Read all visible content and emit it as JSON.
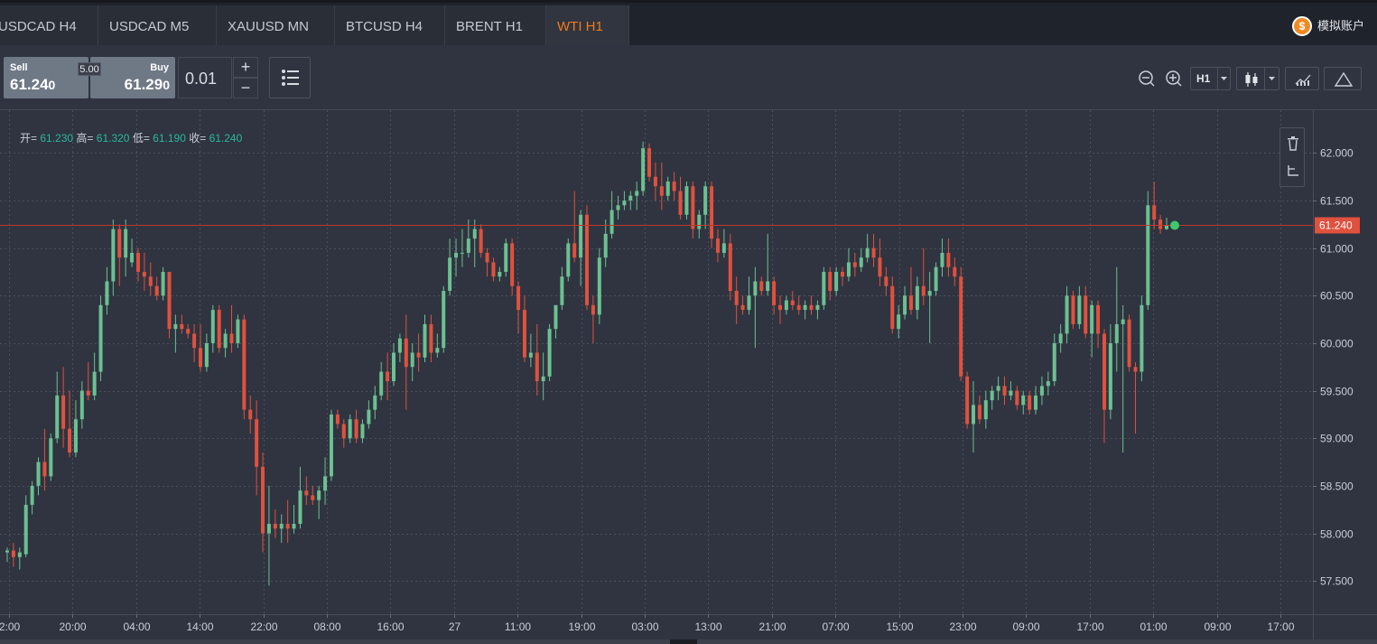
{
  "tabs": [
    {
      "label": "USDCAD H4",
      "active": false
    },
    {
      "label": "USDCAD M5",
      "active": false
    },
    {
      "label": "XAUUSD MN",
      "active": false
    },
    {
      "label": "BTCUSD H4",
      "active": false
    },
    {
      "label": "BRENT H1",
      "active": false
    },
    {
      "label": "WTI H1",
      "active": true
    }
  ],
  "account": {
    "label": "模拟账户",
    "icon": "coin-icon"
  },
  "trade": {
    "sell": {
      "label": "Sell",
      "price_main": "61.24",
      "price_last": "0"
    },
    "buy": {
      "label": "Buy",
      "price_main": "61.29",
      "price_last": "0"
    },
    "spread": "5.00",
    "quantity": "0.01",
    "plus": "+",
    "minus": "−"
  },
  "toolbar": {
    "timeframe": "H1",
    "icons": [
      "zoom-out-icon",
      "zoom-in-icon",
      "candlestick-icon",
      "indicators-icon",
      "drawing-triangle-icon"
    ]
  },
  "ohlc": {
    "open_label": "开=",
    "open": "61.230",
    "high_label": "高=",
    "high": "61.320",
    "low_label": "低=",
    "low": "61.190",
    "close_label": "收=",
    "close": "61.240"
  },
  "colors": {
    "up": "#6cc091",
    "down": "#e0513e",
    "price_line": "#c0392b",
    "current": "#3fc86b"
  },
  "chart_data": {
    "type": "candlestick",
    "symbol": "WTI",
    "timeframe": "H1",
    "ylim": [
      57.15,
      62.45
    ],
    "y_ticks": [
      "57.500",
      "58.000",
      "58.500",
      "59.000",
      "59.500",
      "60.000",
      "60.500",
      "61.000",
      "61.500",
      "62.000"
    ],
    "y_tick_values": [
      57.5,
      58.0,
      58.5,
      59.0,
      59.5,
      60.0,
      60.5,
      61.0,
      61.5,
      62.0
    ],
    "x_ticks": [
      "2:00",
      "20:00",
      "04:00",
      "14:00",
      "22:00",
      "08:00",
      "16:00",
      "27",
      "11:00",
      "19:00",
      "03:00",
      "13:00",
      "21:00",
      "07:00",
      "15:00",
      "23:00",
      "09:00",
      "17:00",
      "01:00",
      "09:00",
      "17:00"
    ],
    "current_price": 61.24,
    "current_price_label": "61.240",
    "candles": [
      [
        57.8,
        57.85,
        57.7,
        57.82
      ],
      [
        57.82,
        57.9,
        57.65,
        57.75
      ],
      [
        57.75,
        57.85,
        57.62,
        57.8
      ],
      [
        57.78,
        58.4,
        57.75,
        58.3
      ],
      [
        58.3,
        58.55,
        58.2,
        58.5
      ],
      [
        58.5,
        58.8,
        58.4,
        58.75
      ],
      [
        58.75,
        59.1,
        58.45,
        58.6
      ],
      [
        58.6,
        59.05,
        58.55,
        59.0
      ],
      [
        59.0,
        59.7,
        58.95,
        59.45
      ],
      [
        59.45,
        59.75,
        58.9,
        59.1
      ],
      [
        59.1,
        59.5,
        58.8,
        58.85
      ],
      [
        58.85,
        59.4,
        58.8,
        59.2
      ],
      [
        59.2,
        59.6,
        59.1,
        59.5
      ],
      [
        59.5,
        59.8,
        59.4,
        59.45
      ],
      [
        59.45,
        59.9,
        59.4,
        59.7
      ],
      [
        59.7,
        60.5,
        59.6,
        60.4
      ],
      [
        60.4,
        60.8,
        60.3,
        60.65
      ],
      [
        60.65,
        61.3,
        60.5,
        61.2
      ],
      [
        61.2,
        61.25,
        60.6,
        60.9
      ],
      [
        60.9,
        61.3,
        60.7,
        61.2
      ],
      [
        60.85,
        61.1,
        60.8,
        60.95
      ],
      [
        60.95,
        61.0,
        60.65,
        60.75
      ],
      [
        60.75,
        60.95,
        60.55,
        60.7
      ],
      [
        60.7,
        60.85,
        60.5,
        60.6
      ],
      [
        60.6,
        60.7,
        60.45,
        60.5
      ],
      [
        60.5,
        60.8,
        60.45,
        60.75
      ],
      [
        60.75,
        60.75,
        60.05,
        60.15
      ],
      [
        60.15,
        60.3,
        59.9,
        60.2
      ],
      [
        60.2,
        60.3,
        60.1,
        60.15
      ],
      [
        60.15,
        60.2,
        60.05,
        60.1
      ],
      [
        60.1,
        60.2,
        59.8,
        59.95
      ],
      [
        59.95,
        60.2,
        59.7,
        59.75
      ],
      [
        59.75,
        60.1,
        59.7,
        60.0
      ],
      [
        60.0,
        60.4,
        59.9,
        60.35
      ],
      [
        60.35,
        60.4,
        59.9,
        59.95
      ],
      [
        59.95,
        60.15,
        59.85,
        60.1
      ],
      [
        60.1,
        60.4,
        59.9,
        60.0
      ],
      [
        60.0,
        60.3,
        59.95,
        60.25
      ],
      [
        60.25,
        60.3,
        59.2,
        59.3
      ],
      [
        59.3,
        59.45,
        59.05,
        59.2
      ],
      [
        59.2,
        59.4,
        58.4,
        58.7
      ],
      [
        58.7,
        58.85,
        57.8,
        58.0
      ],
      [
        58.0,
        58.5,
        57.45,
        58.1
      ],
      [
        58.1,
        58.25,
        57.95,
        58.05
      ],
      [
        58.05,
        58.2,
        57.9,
        58.1
      ],
      [
        58.1,
        58.35,
        57.9,
        58.05
      ],
      [
        58.05,
        58.3,
        58.0,
        58.1
      ],
      [
        58.1,
        58.7,
        58.05,
        58.45
      ],
      [
        58.45,
        58.6,
        58.3,
        58.4
      ],
      [
        58.4,
        58.5,
        58.3,
        58.35
      ],
      [
        58.35,
        58.5,
        58.15,
        58.45
      ],
      [
        58.45,
        58.8,
        58.3,
        58.6
      ],
      [
        58.6,
        59.3,
        58.55,
        59.25
      ],
      [
        59.25,
        59.3,
        59.1,
        59.15
      ],
      [
        59.15,
        59.2,
        58.9,
        59.0
      ],
      [
        59.0,
        59.25,
        58.95,
        59.2
      ],
      [
        59.2,
        59.3,
        58.95,
        59.0
      ],
      [
        59.0,
        59.2,
        58.95,
        59.15
      ],
      [
        59.15,
        59.4,
        59.1,
        59.3
      ],
      [
        59.3,
        59.55,
        59.2,
        59.45
      ],
      [
        59.45,
        59.8,
        59.4,
        59.7
      ],
      [
        59.7,
        59.9,
        59.4,
        59.6
      ],
      [
        59.6,
        60.0,
        59.55,
        59.9
      ],
      [
        59.9,
        60.1,
        59.8,
        60.05
      ],
      [
        60.05,
        60.3,
        59.3,
        59.75
      ],
      [
        59.75,
        60.0,
        59.6,
        59.9
      ],
      [
        59.9,
        60.1,
        59.7,
        59.85
      ],
      [
        59.85,
        60.3,
        59.8,
        60.2
      ],
      [
        60.2,
        60.3,
        59.8,
        59.9
      ],
      [
        59.9,
        60.1,
        59.85,
        59.95
      ],
      [
        59.95,
        60.6,
        59.9,
        60.55
      ],
      [
        60.55,
        61.1,
        60.5,
        60.9
      ],
      [
        60.9,
        61.1,
        60.7,
        60.95
      ],
      [
        60.95,
        61.2,
        60.8,
        60.95
      ],
      [
        60.95,
        61.3,
        60.9,
        61.1
      ],
      [
        61.1,
        61.3,
        60.8,
        61.2
      ],
      [
        61.2,
        61.25,
        60.9,
        60.95
      ],
      [
        60.95,
        61.0,
        60.7,
        60.85
      ],
      [
        60.85,
        60.9,
        60.65,
        60.7
      ],
      [
        60.7,
        60.8,
        60.65,
        60.75
      ],
      [
        60.75,
        61.1,
        60.7,
        61.05
      ],
      [
        61.05,
        61.1,
        60.5,
        60.6
      ],
      [
        60.6,
        60.65,
        60.1,
        60.35
      ],
      [
        60.35,
        60.5,
        59.8,
        59.85
      ],
      [
        59.85,
        60.1,
        59.75,
        59.9
      ],
      [
        59.9,
        60.2,
        59.45,
        59.6
      ],
      [
        59.6,
        59.9,
        59.4,
        59.65
      ],
      [
        59.65,
        60.2,
        59.6,
        60.15
      ],
      [
        60.15,
        60.4,
        60.05,
        60.4
      ],
      [
        60.4,
        60.8,
        60.35,
        60.7
      ],
      [
        60.7,
        61.1,
        60.65,
        61.05
      ],
      [
        61.05,
        61.6,
        60.85,
        60.9
      ],
      [
        60.9,
        61.4,
        60.6,
        61.35
      ],
      [
        61.35,
        61.45,
        60.35,
        60.4
      ],
      [
        60.4,
        60.5,
        60.0,
        60.3
      ],
      [
        60.3,
        61.0,
        60.2,
        60.9
      ],
      [
        60.9,
        61.3,
        60.8,
        61.15
      ],
      [
        61.15,
        61.6,
        61.1,
        61.4
      ],
      [
        61.4,
        61.55,
        61.3,
        61.45
      ],
      [
        61.45,
        61.6,
        61.4,
        61.5
      ],
      [
        61.5,
        61.6,
        61.4,
        61.55
      ],
      [
        61.55,
        61.7,
        61.4,
        61.6
      ],
      [
        61.6,
        62.12,
        61.55,
        62.05
      ],
      [
        62.05,
        62.1,
        61.7,
        61.75
      ],
      [
        61.75,
        61.9,
        61.5,
        61.65
      ],
      [
        61.65,
        61.9,
        61.4,
        61.55
      ],
      [
        61.55,
        61.75,
        61.5,
        61.7
      ],
      [
        61.7,
        61.8,
        61.5,
        61.6
      ],
      [
        61.6,
        61.75,
        61.3,
        61.35
      ],
      [
        61.35,
        61.7,
        61.3,
        61.65
      ],
      [
        61.65,
        61.7,
        61.1,
        61.2
      ],
      [
        61.2,
        61.4,
        61.1,
        61.35
      ],
      [
        61.35,
        61.7,
        61.2,
        61.65
      ],
      [
        61.65,
        61.7,
        61.0,
        61.1
      ],
      [
        61.1,
        61.2,
        60.85,
        60.95
      ],
      [
        60.95,
        61.2,
        60.9,
        61.05
      ],
      [
        61.05,
        61.15,
        60.45,
        60.55
      ],
      [
        60.55,
        60.7,
        60.2,
        60.4
      ],
      [
        60.4,
        60.5,
        60.3,
        60.35
      ],
      [
        60.35,
        60.7,
        60.3,
        60.5
      ],
      [
        60.5,
        60.8,
        59.95,
        60.65
      ],
      [
        60.65,
        60.7,
        60.5,
        60.55
      ],
      [
        60.55,
        61.15,
        60.5,
        60.65
      ],
      [
        60.65,
        60.7,
        60.3,
        60.4
      ],
      [
        60.4,
        60.5,
        60.2,
        60.35
      ],
      [
        60.35,
        60.5,
        60.3,
        60.45
      ],
      [
        60.45,
        60.55,
        60.35,
        60.4
      ],
      [
        60.4,
        60.5,
        60.3,
        60.35
      ],
      [
        60.35,
        60.45,
        60.25,
        60.4
      ],
      [
        60.4,
        60.5,
        60.3,
        60.35
      ],
      [
        60.35,
        60.45,
        60.25,
        60.4
      ],
      [
        60.4,
        60.8,
        60.35,
        60.75
      ],
      [
        60.75,
        60.8,
        60.45,
        60.55
      ],
      [
        60.55,
        60.8,
        60.5,
        60.75
      ],
      [
        60.75,
        60.8,
        60.6,
        60.7
      ],
      [
        60.7,
        61.0,
        60.65,
        60.85
      ],
      [
        60.85,
        60.95,
        60.7,
        60.8
      ],
      [
        60.8,
        61.0,
        60.75,
        60.9
      ],
      [
        60.9,
        61.15,
        60.85,
        61.0
      ],
      [
        61.0,
        61.15,
        60.8,
        60.9
      ],
      [
        60.9,
        61.1,
        60.6,
        60.7
      ],
      [
        60.7,
        60.8,
        60.5,
        60.6
      ],
      [
        60.6,
        60.7,
        60.1,
        60.15
      ],
      [
        60.15,
        60.4,
        60.05,
        60.3
      ],
      [
        60.3,
        60.6,
        60.25,
        60.5
      ],
      [
        60.5,
        60.8,
        60.3,
        60.35
      ],
      [
        60.35,
        60.7,
        60.25,
        60.6
      ],
      [
        60.6,
        61.0,
        60.4,
        60.5
      ],
      [
        60.5,
        60.75,
        60.0,
        60.55
      ],
      [
        60.55,
        60.85,
        60.5,
        60.8
      ],
      [
        60.8,
        61.1,
        60.7,
        60.95
      ],
      [
        60.95,
        61.1,
        60.7,
        60.8
      ],
      [
        60.8,
        60.9,
        60.6,
        60.7
      ],
      [
        60.7,
        60.8,
        59.6,
        59.65
      ],
      [
        59.65,
        59.7,
        59.1,
        59.15
      ],
      [
        59.15,
        59.6,
        58.85,
        59.35
      ],
      [
        59.35,
        59.45,
        59.15,
        59.2
      ],
      [
        59.2,
        59.5,
        59.1,
        59.4
      ],
      [
        59.4,
        59.55,
        59.3,
        59.5
      ],
      [
        59.5,
        59.65,
        59.4,
        59.55
      ],
      [
        59.55,
        59.65,
        59.35,
        59.45
      ],
      [
        59.45,
        59.6,
        59.4,
        59.5
      ],
      [
        59.5,
        59.55,
        59.3,
        59.35
      ],
      [
        59.35,
        59.5,
        59.25,
        59.45
      ],
      [
        59.45,
        59.5,
        59.25,
        59.3
      ],
      [
        59.3,
        59.55,
        59.25,
        59.45
      ],
      [
        59.45,
        59.65,
        59.35,
        59.55
      ],
      [
        59.55,
        59.7,
        59.45,
        59.6
      ],
      [
        59.6,
        60.1,
        59.55,
        60.0
      ],
      [
        60.0,
        60.2,
        59.9,
        60.1
      ],
      [
        60.1,
        60.6,
        60.0,
        60.5
      ],
      [
        60.5,
        60.55,
        60.15,
        60.2
      ],
      [
        60.2,
        60.6,
        60.15,
        60.5
      ],
      [
        60.5,
        60.6,
        60.05,
        60.1
      ],
      [
        60.1,
        60.45,
        59.85,
        60.4
      ],
      [
        60.4,
        60.45,
        59.95,
        60.1
      ],
      [
        60.1,
        60.15,
        58.95,
        59.3
      ],
      [
        59.3,
        60.2,
        59.2,
        60.0
      ],
      [
        60.0,
        60.8,
        59.7,
        60.2
      ],
      [
        60.2,
        60.4,
        58.85,
        60.25
      ],
      [
        60.25,
        60.3,
        59.7,
        59.75
      ],
      [
        59.75,
        59.8,
        59.05,
        59.7
      ],
      [
        59.7,
        60.5,
        59.6,
        60.4
      ],
      [
        60.4,
        61.6,
        60.35,
        61.45
      ],
      [
        61.45,
        61.7,
        61.2,
        61.3
      ],
      [
        61.3,
        61.35,
        61.15,
        61.2
      ],
      [
        61.2,
        61.32,
        61.19,
        61.24
      ]
    ]
  }
}
